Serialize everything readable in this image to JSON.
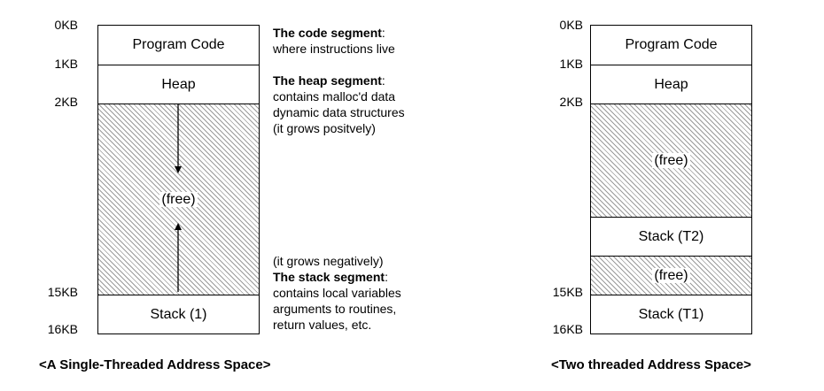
{
  "left": {
    "ticks": {
      "t0": "0KB",
      "t1": "1KB",
      "t2": "2KB",
      "t15": "15KB",
      "t16": "16KB"
    },
    "segments": {
      "code": "Program Code",
      "heap": "Heap",
      "free": "(free)",
      "stack": "Stack (1)"
    },
    "caption": "<A Single-Threaded Address Space>"
  },
  "notes": {
    "code_title": "The code segment",
    "code_colon": ":",
    "code_desc": "where instructions live",
    "heap_title": "The heap segment",
    "heap_colon": ":",
    "heap_line1": "contains malloc'd data",
    "heap_line2": "dynamic data structures",
    "heap_line3": "(it grows positvely)",
    "stack_grow": "(it grows negatively)",
    "stack_title": "The stack segment",
    "stack_colon": ":",
    "stack_line1": "contains local variables",
    "stack_line2": "arguments to routines,",
    "stack_line3": "return values, etc."
  },
  "right": {
    "ticks": {
      "t0": "0KB",
      "t1": "1KB",
      "t2": "2KB",
      "t15": "15KB",
      "t16": "16KB"
    },
    "segments": {
      "code": "Program Code",
      "heap": "Heap",
      "free1": "(free)",
      "stack_t2": "Stack (T2)",
      "free2": "(free)",
      "stack_t1": "Stack (T1)"
    },
    "caption": "<Two threaded Address Space>"
  }
}
